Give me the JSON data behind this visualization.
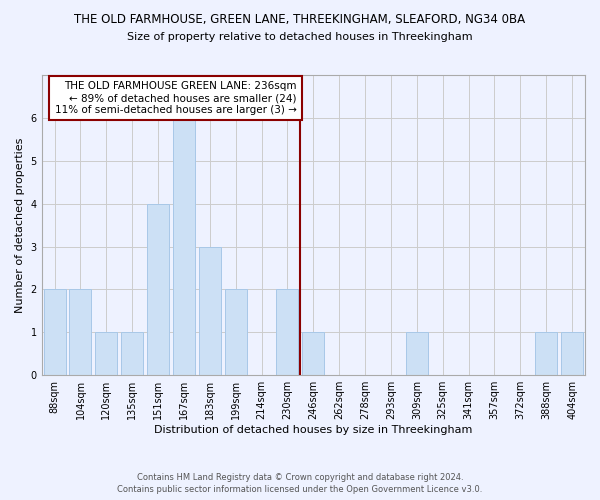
{
  "title": "THE OLD FARMHOUSE, GREEN LANE, THREEKINGHAM, SLEAFORD, NG34 0BA",
  "subtitle": "Size of property relative to detached houses in Threekingham",
  "xlabel": "Distribution of detached houses by size in Threekingham",
  "ylabel": "Number of detached properties",
  "footnote1": "Contains HM Land Registry data © Crown copyright and database right 2024.",
  "footnote2": "Contains public sector information licensed under the Open Government Licence v3.0.",
  "bins": [
    "88sqm",
    "104sqm",
    "120sqm",
    "135sqm",
    "151sqm",
    "167sqm",
    "183sqm",
    "199sqm",
    "214sqm",
    "230sqm",
    "246sqm",
    "262sqm",
    "278sqm",
    "293sqm",
    "309sqm",
    "325sqm",
    "341sqm",
    "357sqm",
    "372sqm",
    "388sqm",
    "404sqm"
  ],
  "values": [
    2,
    2,
    1,
    1,
    4,
    6,
    3,
    2,
    0,
    2,
    1,
    0,
    0,
    0,
    1,
    0,
    0,
    0,
    0,
    1,
    1
  ],
  "bar_color": "#cce0f5",
  "bar_edge_color": "#a8c8e8",
  "grid_color": "#cccccc",
  "vline_x_index": 9.5,
  "vline_color": "#8b0000",
  "annotation_text": "THE OLD FARMHOUSE GREEN LANE: 236sqm\n← 89% of detached houses are smaller (24)\n11% of semi-detached houses are larger (3) →",
  "annotation_box_color": "#ffffff",
  "annotation_box_edge": "#8b0000",
  "ylim": [
    0,
    7
  ],
  "yticks": [
    0,
    1,
    2,
    3,
    4,
    5,
    6,
    7
  ],
  "background_color": "#eef2ff",
  "title_fontsize": 8.5,
  "subtitle_fontsize": 8.0,
  "axis_label_fontsize": 8.0,
  "tick_fontsize": 7.0,
  "annotation_fontsize": 7.5,
  "footnote_fontsize": 6.0
}
